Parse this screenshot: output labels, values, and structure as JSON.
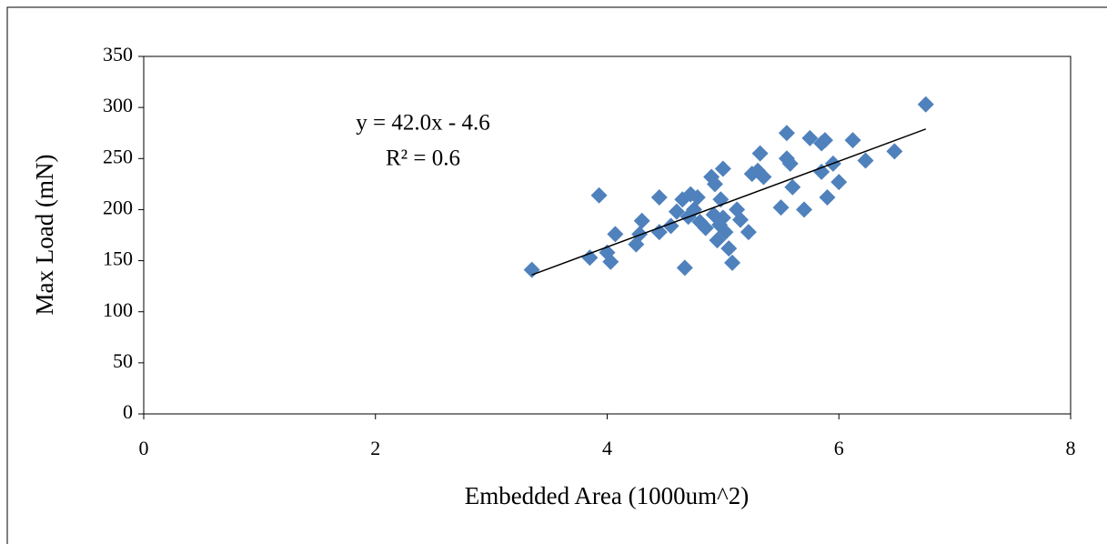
{
  "chart_data": {
    "type": "scatter",
    "x_label": "Embedded Area (1000um^2)",
    "y_label": "Max Load (mN)",
    "annotations": [
      "y = 42.0x - 4.6",
      "R² = 0.6"
    ],
    "color": "#4f81bd",
    "grid": false,
    "x": [
      3.35,
      3.85,
      3.93,
      4.0,
      4.03,
      4.07,
      4.25,
      4.28,
      4.3,
      4.45,
      4.45,
      4.55,
      4.6,
      4.65,
      4.67,
      4.7,
      4.72,
      4.75,
      4.78,
      4.8,
      4.85,
      4.9,
      4.92,
      4.93,
      4.95,
      4.97,
      4.98,
      5.0,
      5.0,
      5.02,
      5.05,
      5.08,
      5.12,
      5.15,
      5.22,
      5.25,
      5.3,
      5.32,
      5.35,
      5.5,
      5.55,
      5.55,
      5.58,
      5.6,
      5.7,
      5.75,
      5.85,
      5.88,
      5.85,
      5.9,
      5.95,
      6.0,
      6.12,
      6.23,
      6.48,
      6.75
    ],
    "values": [
      141,
      153,
      214,
      158,
      149,
      176,
      166,
      176,
      189,
      212,
      178,
      184,
      198,
      210,
      143,
      193,
      215,
      200,
      212,
      188,
      182,
      232,
      195,
      225,
      170,
      185,
      210,
      240,
      192,
      178,
      162,
      148,
      200,
      190,
      178,
      235,
      238,
      255,
      232,
      202,
      275,
      250,
      245,
      222,
      200,
      270,
      265,
      268,
      237,
      212,
      245,
      227,
      268,
      248,
      257,
      303
    ],
    "trendline": {
      "x": [
        3.35,
        6.75
      ],
      "y": [
        136.1,
        278.9
      ],
      "color": "#000000"
    },
    "xlim": [
      0,
      8
    ],
    "xticks": [
      0,
      2,
      4,
      6,
      8
    ],
    "ylim": [
      0,
      350
    ],
    "yticks": [
      0,
      50,
      100,
      150,
      200,
      250,
      300,
      350
    ]
  }
}
